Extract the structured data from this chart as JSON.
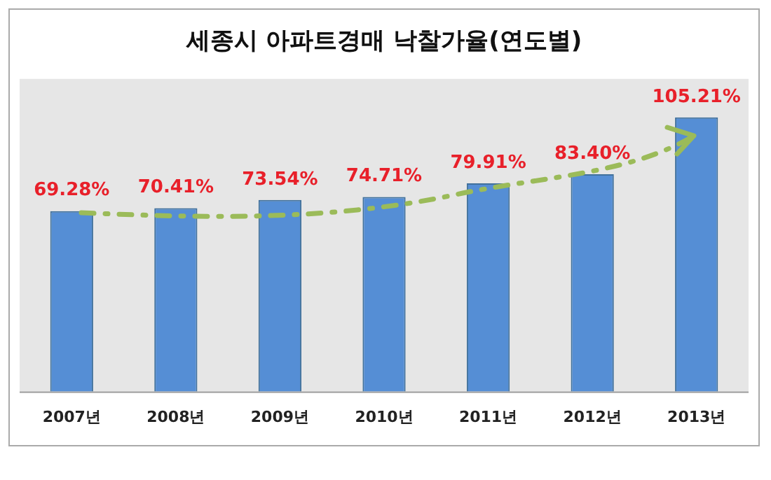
{
  "chart_data": {
    "type": "bar",
    "title": "세종시 아파트경매 낙찰가율(연도별)",
    "categories": [
      "2007년",
      "2008년",
      "2009년",
      "2010년",
      "2011년",
      "2012년",
      "2013년"
    ],
    "values": [
      69.28,
      70.41,
      73.54,
      74.71,
      79.91,
      83.4,
      105.21
    ],
    "value_labels": [
      "69.28%",
      "70.41%",
      "73.54%",
      "74.71%",
      "79.91%",
      "83.40%",
      "105.21%"
    ],
    "color": "#558ed5",
    "grid": false,
    "legend": false
  }
}
